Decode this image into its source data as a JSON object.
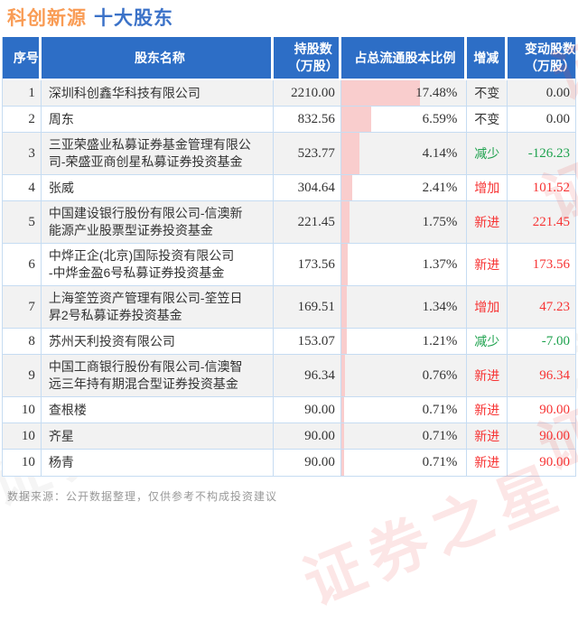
{
  "title": {
    "stock": "科创新源",
    "suffix": "十大股东"
  },
  "header": {
    "col_no": "序号",
    "col_name": "股东名称",
    "col_shares": "持股数\n（万股）",
    "col_pct": "占总流通股本比例",
    "col_change": "增减",
    "col_delta": "变动股数\n（万股）"
  },
  "chart_data": {
    "type": "table",
    "title": "科创新源 十大股东",
    "columns": [
      "序号",
      "股东名称",
      "持股数（万股）",
      "占总流通股本比例",
      "增减",
      "变动股数（万股）"
    ],
    "bar_column": "占总流通股本比例",
    "bar_color": "#F9CDCD",
    "bar_pct_to_width_percent": 3.6,
    "rows": [
      {
        "no": "1",
        "name": "深圳科创鑫华科技有限公司",
        "shares": "2210.00",
        "pct": "17.48%",
        "pct_value": 17.48,
        "change": "不变",
        "delta": "0.00",
        "trend": "flat"
      },
      {
        "no": "2",
        "name": "周东",
        "shares": "832.56",
        "pct": "6.59%",
        "pct_value": 6.59,
        "change": "不变",
        "delta": "0.00",
        "trend": "flat"
      },
      {
        "no": "3",
        "name": "三亚荣盛业私募证券基金管理有限公\n司-荣盛亚商创星私募证券投资基金",
        "shares": "523.77",
        "pct": "4.14%",
        "pct_value": 4.14,
        "change": "减少",
        "delta": "-126.23",
        "trend": "down"
      },
      {
        "no": "4",
        "name": "张威",
        "shares": "304.64",
        "pct": "2.41%",
        "pct_value": 2.41,
        "change": "增加",
        "delta": "101.52",
        "trend": "up"
      },
      {
        "no": "5",
        "name": "中国建设银行股份有限公司-信澳新\n能源产业股票型证券投资基金",
        "shares": "221.45",
        "pct": "1.75%",
        "pct_value": 1.75,
        "change": "新进",
        "delta": "221.45",
        "trend": "up"
      },
      {
        "no": "6",
        "name": "中烨正企(北京)国际投资有限公司\n-中烨金盈6号私募证券投资基金",
        "shares": "173.56",
        "pct": "1.37%",
        "pct_value": 1.37,
        "change": "新进",
        "delta": "173.56",
        "trend": "up"
      },
      {
        "no": "7",
        "name": "上海筌笠资产管理有限公司-筌笠日\n昇2号私募证券投资基金",
        "shares": "169.51",
        "pct": "1.34%",
        "pct_value": 1.34,
        "change": "增加",
        "delta": "47.23",
        "trend": "up"
      },
      {
        "no": "8",
        "name": "苏州天利投资有限公司",
        "shares": "153.07",
        "pct": "1.21%",
        "pct_value": 1.21,
        "change": "减少",
        "delta": "-7.00",
        "trend": "down"
      },
      {
        "no": "9",
        "name": "中国工商银行股份有限公司-信澳智\n远三年持有期混合型证券投资基金",
        "shares": "96.34",
        "pct": "0.76%",
        "pct_value": 0.76,
        "change": "新进",
        "delta": "96.34",
        "trend": "up"
      },
      {
        "no": "10",
        "name": "查根楼",
        "shares": "90.00",
        "pct": "0.71%",
        "pct_value": 0.71,
        "change": "新进",
        "delta": "90.00",
        "trend": "up"
      },
      {
        "no": "10",
        "name": "齐星",
        "shares": "90.00",
        "pct": "0.71%",
        "pct_value": 0.71,
        "change": "新进",
        "delta": "90.00",
        "trend": "up"
      },
      {
        "no": "10",
        "name": "杨青",
        "shares": "90.00",
        "pct": "0.71%",
        "pct_value": 0.71,
        "change": "新进",
        "delta": "90.00",
        "trend": "up"
      }
    ]
  },
  "footer": {
    "text": "数据来源：公开数据整理，仅供参考不构成投资建议"
  },
  "watermark": {
    "text": "证券之星"
  },
  "colors": {
    "header_bg": "#2D6EC6",
    "title_stock": "#F99C55",
    "title_suffix": "#3B72C8",
    "row_alt_bg": "#F2F2F2",
    "border": "#C6DCF2",
    "up_red": "#F73333",
    "down_green": "#1EA24E",
    "bar_pink": "#F9CDCD",
    "footer_gray": "#999999"
  }
}
